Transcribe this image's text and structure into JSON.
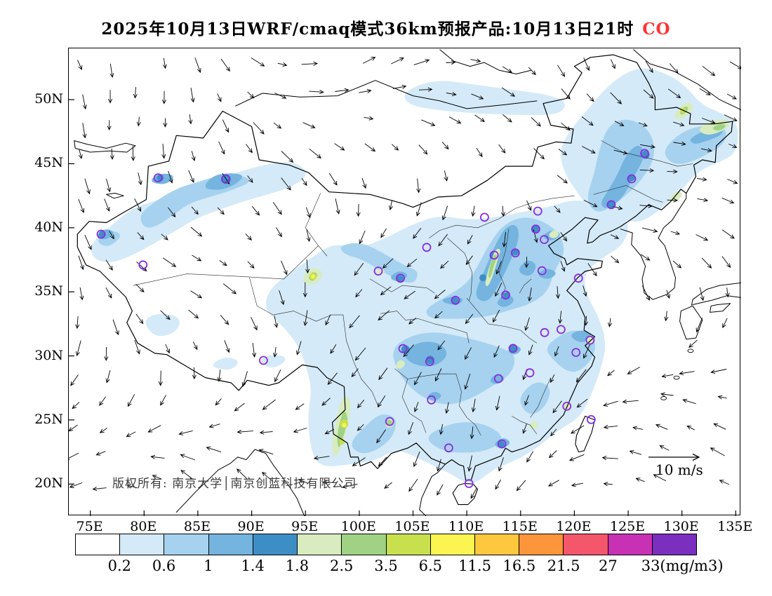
{
  "title": {
    "text": "2025年10月13日WRF/cmaq模式36km预报产品:10月13日21时",
    "pollutant": "CO",
    "pollutant_color": "#ff3333"
  },
  "map": {
    "copyright": "版权所有: 南京大学│南京创蓝科技有限公司",
    "wind_scale_label": "10 m/s",
    "lat_labels": [
      "50N",
      "45N",
      "40N",
      "35N",
      "30N",
      "25N",
      "20N"
    ],
    "lon_labels": [
      "75E",
      "80E",
      "85E",
      "90E",
      "95E",
      "100E",
      "105E",
      "110E",
      "115E",
      "120E",
      "125E",
      "130E",
      "135E"
    ],
    "city_marker_color": "#8a2be2"
  },
  "colorbar": {
    "labels": [
      "0.2",
      "0.6",
      "1",
      "1.4",
      "1.8",
      "2.5",
      "3.5",
      "6.5",
      "11.5",
      "16.5",
      "21.5",
      "27",
      "33(mg/m3)"
    ],
    "units_suffix": "(mg/m3)",
    "colors": [
      "#ffffff",
      "#d4eaf8",
      "#a6d2ef",
      "#74b4df",
      "#3e8ec6",
      "#d8ecc0",
      "#9fd383",
      "#c8e04e",
      "#fbf451",
      "#fdc73e",
      "#fd953b",
      "#f4566b",
      "#c831b4",
      "#7a2fbe"
    ]
  },
  "chart_data": {
    "type": "heatmap",
    "subtype": "filled-contour concentration map with wind vector overlay",
    "title": "2025年10月13日WRF/cmaq模式36km预报产品:10月13日21时 CO",
    "variable": "CO",
    "units": "mg/m3",
    "model": "WRF/cmaq",
    "grid_resolution": "36km",
    "forecast_valid": "10月13日21时",
    "x_axis": {
      "ticks": [
        "75E",
        "80E",
        "85E",
        "90E",
        "95E",
        "100E",
        "105E",
        "110E",
        "115E",
        "120E",
        "125E",
        "130E",
        "135E"
      ],
      "range_deg_lon": [
        73,
        135.5
      ]
    },
    "y_axis": {
      "ticks": [
        "20N",
        "25N",
        "30N",
        "35N",
        "40N",
        "45N",
        "50N"
      ],
      "range_deg_lat": [
        17.5,
        54
      ]
    },
    "contour_levels_mg_m3": [
      0.2,
      0.6,
      1,
      1.4,
      1.8,
      2.5,
      3.5,
      6.5,
      11.5,
      16.5,
      21.5,
      27,
      33
    ],
    "palette": [
      "#ffffff",
      "#d4eaf8",
      "#a6d2ef",
      "#74b4df",
      "#3e8ec6",
      "#d8ecc0",
      "#9fd383",
      "#c8e04e",
      "#fbf451",
      "#fdc73e",
      "#fd953b",
      "#f4566b",
      "#c831b4",
      "#7a2fbe"
    ],
    "legend_position": "bottom",
    "grid": false,
    "wind_reference": "10 m/s",
    "overlays": [
      "wind vector field",
      "provincial capital markers (purple circles)",
      "coastlines, national and provincial borders"
    ],
    "value_summary": "Background <0.2 over Tibet plateau, Mongolia and open ocean; 0.2–1.4 mg/m3 over most of eastern/central China, northern Xinjiang and Northeast China; 1.4–2.5 cores over Sichuan basin, Shanxi, North China Plain, Liaoning–Heilongjiang corridor and Yangtze delta; 2.5–6.5 hotspots over western Yunnan, central Qinghai, Shanxi and far-NE Heilongjiang"
  }
}
